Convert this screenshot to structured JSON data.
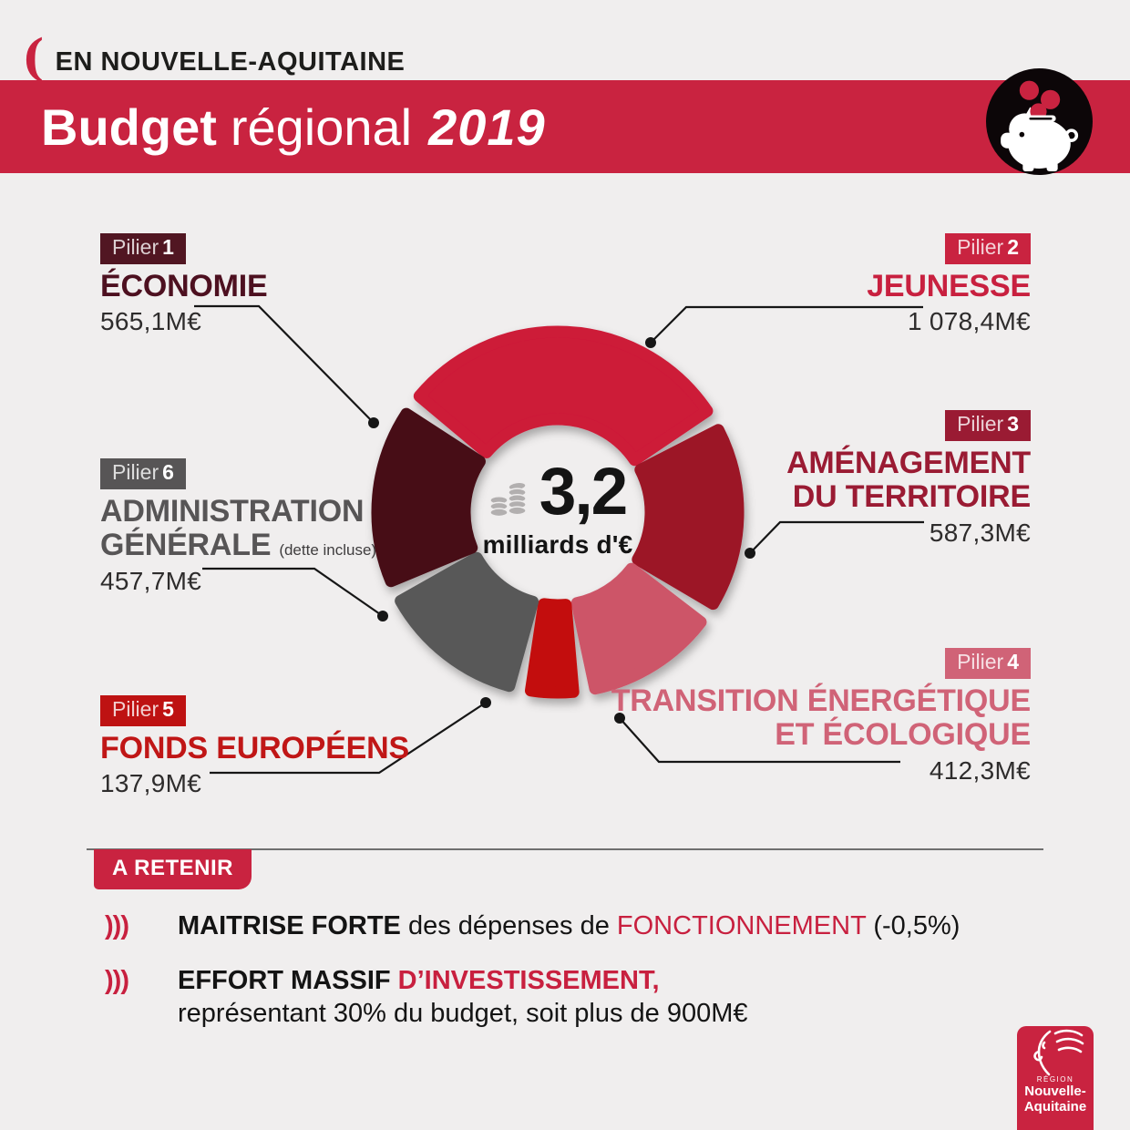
{
  "page": {
    "background": "#f0eeee",
    "accent_red": "#c92340"
  },
  "header": {
    "bracket_glyph": "(",
    "region_tag": "EN NOUVELLE-AQUITAINE",
    "title": {
      "word_bold": "Budget",
      "word_regular": "régional",
      "year": "2019"
    }
  },
  "chart_data": {
    "type": "donut",
    "title": "Budget régional 2019",
    "unit": "M€",
    "total_meur": 3238.7,
    "center": {
      "value": "3,2",
      "label": "milliards d'€"
    },
    "legend_position": "callouts-around",
    "start_angle_deg": -50,
    "segments": [
      {
        "pillar_word": "Pilier",
        "pillar_num": "2",
        "label": "JEUNESSE",
        "label_lines": [
          "JEUNESSE"
        ],
        "value": 1078.4,
        "value_label": "1 078,4M€",
        "color": "#cd1a39",
        "badge_color": "#c92340",
        "text_color": "#c8203f"
      },
      {
        "pillar_word": "Pilier",
        "pillar_num": "3",
        "label": "AMÉNAGEMENT DU TERRITOIRE",
        "label_lines": [
          "AMÉNAGEMENT",
          "DU TERRITOIRE"
        ],
        "value": 587.3,
        "value_label": "587,3M€",
        "color": "#9c1328",
        "badge_color": "#9a1b33",
        "text_color": "#9a1b33"
      },
      {
        "pillar_word": "Pilier",
        "pillar_num": "4",
        "label": "TRANSITION ÉNERGÉTIQUE ET ÉCOLOGIQUE",
        "label_lines": [
          "TRANSITION ÉNERGÉTIQUE",
          "ET ÉCOLOGIQUE"
        ],
        "value": 412.3,
        "value_label": "412,3M€",
        "color": "#cd5568",
        "badge_color": "#d06377",
        "text_color": "#d06377"
      },
      {
        "pillar_word": "Pilier",
        "pillar_num": "5",
        "label": "FONDS EUROPÉENS",
        "label_lines": [
          "FONDS EUROPÉENS"
        ],
        "value": 137.9,
        "value_label": "137,9M€",
        "color": "#c30d0d",
        "badge_color": "#be1212",
        "text_color": "#c01616"
      },
      {
        "pillar_word": "Pilier",
        "pillar_num": "6",
        "label": "ADMINISTRATION GÉNÉRALE",
        "label_lines": [
          "ADMINISTRATION",
          "GÉNÉRALE"
        ],
        "note": "(dette incluse)",
        "value": 457.7,
        "value_label": "457,7M€",
        "color": "#595959",
        "badge_color": "#575556",
        "text_color": "#575556"
      },
      {
        "pillar_word": "Pilier",
        "pillar_num": "1",
        "label": "ÉCONOMIE",
        "label_lines": [
          "ÉCONOMIE"
        ],
        "value": 565.1,
        "value_label": "565,1M€",
        "color": "#470b15",
        "badge_color": "#511622",
        "text_color": "#4d1020"
      }
    ]
  },
  "retenir": {
    "heading": "A RETENIR",
    "marker": ")))",
    "bullet1": {
      "bold": "MAITRISE FORTE",
      "mid": " des dépenses de ",
      "highlight": "FONCTIONNEMENT",
      "tail": " (-0,5%)"
    },
    "bullet2": {
      "bold": "EFFORT MASSIF ",
      "highlight": "D’INVESTISSEMENT,",
      "line2": "représentant 30% du budget, soit plus de 900M€"
    }
  },
  "logo": {
    "region": "RÉGION",
    "line1": "Nouvelle-",
    "line2": "Aquitaine"
  }
}
